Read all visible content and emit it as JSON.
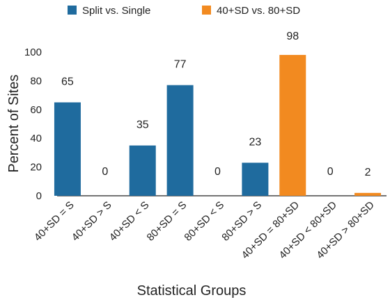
{
  "chart_data": {
    "type": "bar",
    "xlabel": "Statistical Groups",
    "ylabel": "Percent of Sites",
    "ylim": [
      0,
      100
    ],
    "yticks": [
      0,
      20,
      40,
      60,
      80,
      100
    ],
    "grid": false,
    "legend_position": "top",
    "categories": [
      "40+SD = S",
      "40+SD > S",
      "40+SD < S",
      "80+SD = S",
      "80+SD < S",
      "80+SD > S",
      "40+SD = 80+SD",
      "40+SD < 80+SD",
      "40+SD > 80+SD"
    ],
    "series": [
      {
        "name": "Split vs. Single",
        "color": "#1F6B9E",
        "values": [
          65,
          0,
          35,
          77,
          0,
          23,
          null,
          null,
          null
        ]
      },
      {
        "name": "40+SD vs. 80+SD",
        "color": "#F28A20",
        "values": [
          null,
          null,
          null,
          null,
          null,
          null,
          98,
          0,
          2
        ]
      }
    ]
  }
}
